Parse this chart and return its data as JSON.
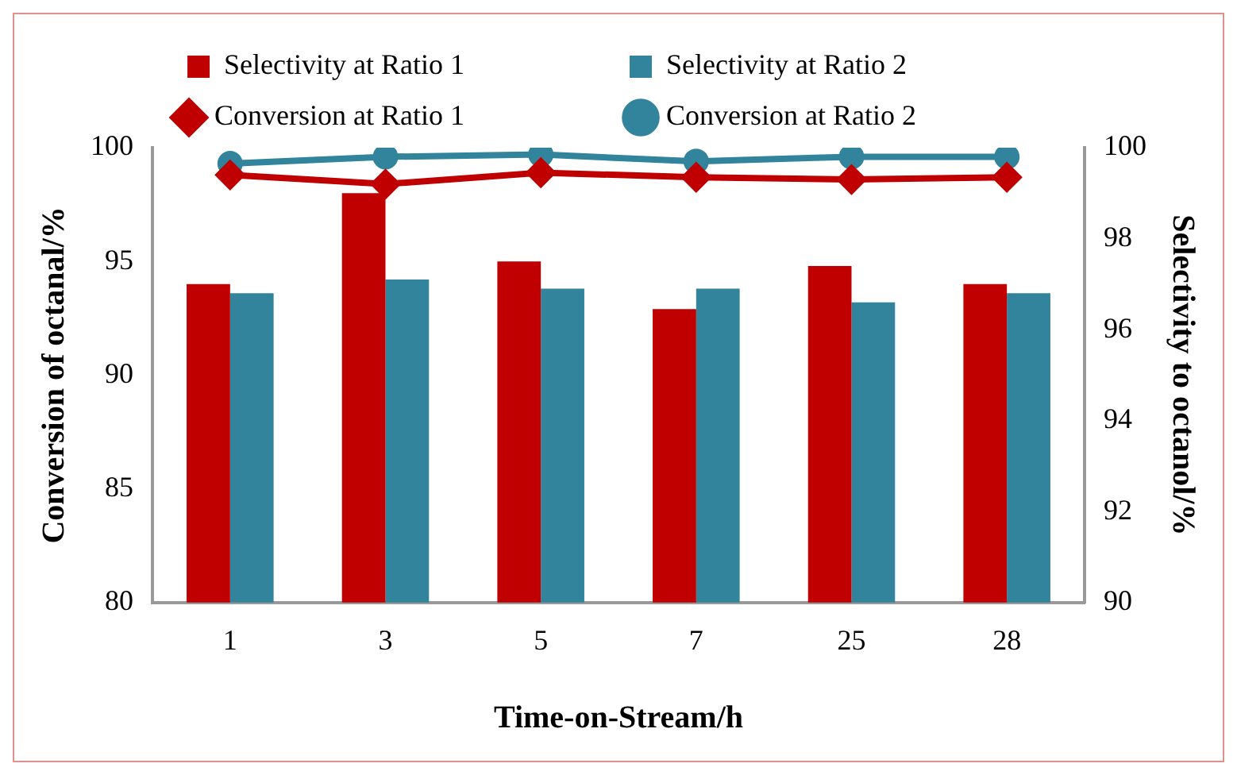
{
  "chart_data": {
    "type": "bar",
    "xlabel": "Time-on-Stream/h",
    "ylabel": "Conversion of octanal/%",
    "y2label": "Selectivity to octanol/%",
    "categories": [
      "1",
      "3",
      "5",
      "7",
      "25",
      "28"
    ],
    "series": [
      {
        "name": "Selectivity at Ratio 1",
        "axis": "y2",
        "color": "#c00000",
        "values": [
          97.0,
          99.0,
          97.5,
          96.45,
          97.4,
          97.0
        ]
      },
      {
        "name": "Selectivity at Ratio 2",
        "axis": "y2",
        "color": "#31849b",
        "values": [
          96.8,
          97.1,
          96.9,
          96.9,
          96.6,
          96.8
        ]
      },
      {
        "name": "Conversion at Ratio 1",
        "type": "line",
        "color": "#c00000",
        "marker": "diamond",
        "values": [
          98.8,
          98.4,
          98.9,
          98.7,
          98.6,
          98.7
        ]
      },
      {
        "name": "Conversion at Ratio 2",
        "type": "line",
        "color": "#31849b",
        "marker": "circle",
        "values": [
          99.3,
          99.6,
          99.7,
          99.4,
          99.6,
          99.6
        ]
      }
    ],
    "ylim": [
      80,
      100
    ],
    "yticks": [
      80,
      85,
      90,
      95,
      100
    ],
    "y2lim": [
      90,
      100
    ],
    "y2ticks": [
      90,
      92,
      94,
      96,
      98,
      100
    ],
    "grid": false,
    "legend": "top"
  }
}
